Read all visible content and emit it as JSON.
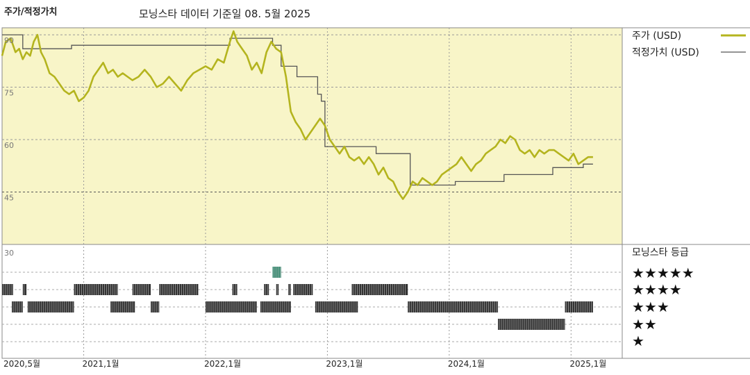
{
  "header": {
    "title": "주가/적정가치",
    "subtitle": "모닝스타 데이터 기준일 08. 5월 2025"
  },
  "legend": {
    "price": "주가 (USD)",
    "fair_value": "적정가치 (USD)",
    "rating_title": "모닝스타 등급",
    "stars": [
      "★★★★★",
      "★★★★",
      "★★★",
      "★★",
      "★"
    ]
  },
  "colors": {
    "price": "#b4b41e",
    "fair_value": "#555555",
    "upper_bg": "#f8f5c8",
    "bar": "#333333",
    "bar_highlight": "#3f8f76"
  },
  "chart_data": [
    {
      "type": "line",
      "title": "주가/적정가치",
      "x_ticks": [
        "2020,5월",
        "2021,1월",
        "2022,1월",
        "2023,1월",
        "2024,1월",
        "2025,1월"
      ],
      "x_tick_dates": [
        2020.33,
        2021.0,
        2022.0,
        2023.0,
        2024.0,
        2025.0
      ],
      "ylim": [
        30,
        92
      ],
      "y_ticks": [
        90,
        75,
        60,
        45
      ],
      "series": [
        {
          "name": "주가 (USD)",
          "color": "#b4b41e",
          "points": [
            [
              2020.33,
              84
            ],
            [
              2020.36,
              88
            ],
            [
              2020.4,
              89
            ],
            [
              2020.44,
              85
            ],
            [
              2020.47,
              86
            ],
            [
              2020.5,
              83
            ],
            [
              2020.53,
              85
            ],
            [
              2020.56,
              84
            ],
            [
              2020.59,
              88
            ],
            [
              2020.62,
              90
            ],
            [
              2020.65,
              85
            ],
            [
              2020.68,
              83
            ],
            [
              2020.72,
              79
            ],
            [
              2020.76,
              78
            ],
            [
              2020.8,
              76
            ],
            [
              2020.84,
              74
            ],
            [
              2020.88,
              73
            ],
            [
              2020.92,
              74
            ],
            [
              2020.96,
              71
            ],
            [
              2021.0,
              72
            ],
            [
              2021.04,
              74
            ],
            [
              2021.08,
              78
            ],
            [
              2021.12,
              80
            ],
            [
              2021.16,
              82
            ],
            [
              2021.2,
              79
            ],
            [
              2021.24,
              80
            ],
            [
              2021.28,
              78
            ],
            [
              2021.32,
              79
            ],
            [
              2021.36,
              78
            ],
            [
              2021.4,
              77
            ],
            [
              2021.45,
              78
            ],
            [
              2021.5,
              80
            ],
            [
              2021.55,
              78
            ],
            [
              2021.6,
              75
            ],
            [
              2021.65,
              76
            ],
            [
              2021.7,
              78
            ],
            [
              2021.75,
              76
            ],
            [
              2021.8,
              74
            ],
            [
              2021.85,
              77
            ],
            [
              2021.9,
              79
            ],
            [
              2021.95,
              80
            ],
            [
              2022.0,
              81
            ],
            [
              2022.05,
              80
            ],
            [
              2022.1,
              83
            ],
            [
              2022.15,
              82
            ],
            [
              2022.2,
              88
            ],
            [
              2022.23,
              91
            ],
            [
              2022.26,
              88
            ],
            [
              2022.3,
              86
            ],
            [
              2022.34,
              84
            ],
            [
              2022.38,
              80
            ],
            [
              2022.42,
              82
            ],
            [
              2022.46,
              79
            ],
            [
              2022.5,
              85
            ],
            [
              2022.54,
              88
            ],
            [
              2022.58,
              86
            ],
            [
              2022.62,
              85
            ],
            [
              2022.66,
              78
            ],
            [
              2022.7,
              68
            ],
            [
              2022.74,
              65
            ],
            [
              2022.78,
              63
            ],
            [
              2022.82,
              60
            ],
            [
              2022.86,
              62
            ],
            [
              2022.9,
              64
            ],
            [
              2022.94,
              66
            ],
            [
              2022.98,
              64
            ],
            [
              2023.02,
              60
            ],
            [
              2023.06,
              58
            ],
            [
              2023.1,
              56
            ],
            [
              2023.14,
              58
            ],
            [
              2023.18,
              55
            ],
            [
              2023.22,
              54
            ],
            [
              2023.26,
              55
            ],
            [
              2023.3,
              53
            ],
            [
              2023.34,
              55
            ],
            [
              2023.38,
              53
            ],
            [
              2023.42,
              50
            ],
            [
              2023.46,
              52
            ],
            [
              2023.5,
              49
            ],
            [
              2023.54,
              48
            ],
            [
              2023.58,
              45
            ],
            [
              2023.62,
              43
            ],
            [
              2023.66,
              45
            ],
            [
              2023.7,
              48
            ],
            [
              2023.74,
              47
            ],
            [
              2023.78,
              49
            ],
            [
              2023.82,
              48
            ],
            [
              2023.86,
              47
            ],
            [
              2023.9,
              48
            ],
            [
              2023.94,
              50
            ],
            [
              2023.98,
              51
            ],
            [
              2024.02,
              52
            ],
            [
              2024.06,
              53
            ],
            [
              2024.1,
              55
            ],
            [
              2024.14,
              53
            ],
            [
              2024.18,
              51
            ],
            [
              2024.22,
              53
            ],
            [
              2024.26,
              54
            ],
            [
              2024.3,
              56
            ],
            [
              2024.34,
              57
            ],
            [
              2024.38,
              58
            ],
            [
              2024.42,
              60
            ],
            [
              2024.46,
              59
            ],
            [
              2024.5,
              61
            ],
            [
              2024.54,
              60
            ],
            [
              2024.58,
              57
            ],
            [
              2024.62,
              56
            ],
            [
              2024.66,
              57
            ],
            [
              2024.7,
              55
            ],
            [
              2024.74,
              57
            ],
            [
              2024.78,
              56
            ],
            [
              2024.82,
              57
            ],
            [
              2024.86,
              57
            ],
            [
              2024.9,
              56
            ],
            [
              2024.94,
              55
            ],
            [
              2024.98,
              54
            ],
            [
              2025.02,
              56
            ],
            [
              2025.06,
              53
            ],
            [
              2025.1,
              54
            ],
            [
              2025.14,
              55
            ],
            [
              2025.18,
              55
            ]
          ]
        },
        {
          "name": "적정가치 (USD)",
          "color": "#555555",
          "points": [
            [
              2020.33,
              90
            ],
            [
              2020.5,
              90
            ],
            [
              2020.5,
              86
            ],
            [
              2020.9,
              86
            ],
            [
              2020.9,
              87
            ],
            [
              2021.8,
              87
            ],
            [
              2021.8,
              87
            ],
            [
              2022.2,
              87
            ],
            [
              2022.2,
              89
            ],
            [
              2022.55,
              89
            ],
            [
              2022.55,
              87
            ],
            [
              2022.62,
              87
            ],
            [
              2022.62,
              81
            ],
            [
              2022.75,
              81
            ],
            [
              2022.75,
              78
            ],
            [
              2022.92,
              78
            ],
            [
              2022.92,
              73
            ],
            [
              2022.95,
              73
            ],
            [
              2022.95,
              71
            ],
            [
              2022.98,
              71
            ],
            [
              2022.98,
              58
            ],
            [
              2023.4,
              58
            ],
            [
              2023.4,
              56
            ],
            [
              2023.68,
              56
            ],
            [
              2023.68,
              47
            ],
            [
              2024.05,
              47
            ],
            [
              2024.05,
              48
            ],
            [
              2024.45,
              48
            ],
            [
              2024.45,
              50
            ],
            [
              2024.85,
              50
            ],
            [
              2024.85,
              52
            ],
            [
              2025.1,
              52
            ],
            [
              2025.1,
              53
            ],
            [
              2025.18,
              53
            ]
          ]
        }
      ]
    },
    {
      "type": "bar",
      "title": "모닝스타 등급",
      "ylabel": "",
      "y_tick": "30",
      "rating_levels": [
        5,
        4,
        3,
        2,
        1
      ],
      "segments": [
        {
          "rating": 5,
          "start": 2022.55,
          "end": 2022.62,
          "highlight": true
        },
        {
          "rating": 4,
          "start": 2020.33,
          "end": 2020.42
        },
        {
          "rating": 4,
          "start": 2020.5,
          "end": 2020.53
        },
        {
          "rating": 4,
          "start": 2020.92,
          "end": 2021.28
        },
        {
          "rating": 4,
          "start": 2021.4,
          "end": 2021.55
        },
        {
          "rating": 4,
          "start": 2021.62,
          "end": 2021.94
        },
        {
          "rating": 4,
          "start": 2022.22,
          "end": 2022.26
        },
        {
          "rating": 4,
          "start": 2022.48,
          "end": 2022.52
        },
        {
          "rating": 4,
          "start": 2022.58,
          "end": 2022.6
        },
        {
          "rating": 4,
          "start": 2022.68,
          "end": 2022.7
        },
        {
          "rating": 4,
          "start": 2022.72,
          "end": 2022.88
        },
        {
          "rating": 4,
          "start": 2023.2,
          "end": 2023.66
        },
        {
          "rating": 3,
          "start": 2020.41,
          "end": 2020.5
        },
        {
          "rating": 3,
          "start": 2020.54,
          "end": 2020.92
        },
        {
          "rating": 3,
          "start": 2021.22,
          "end": 2021.42
        },
        {
          "rating": 3,
          "start": 2021.55,
          "end": 2021.62
        },
        {
          "rating": 3,
          "start": 2022.0,
          "end": 2022.42
        },
        {
          "rating": 3,
          "start": 2022.45,
          "end": 2022.7
        },
        {
          "rating": 3,
          "start": 2022.9,
          "end": 2023.25
        },
        {
          "rating": 3,
          "start": 2023.66,
          "end": 2024.4
        },
        {
          "rating": 3,
          "start": 2024.95,
          "end": 2025.18
        },
        {
          "rating": 2,
          "start": 2024.4,
          "end": 2024.95
        }
      ]
    }
  ]
}
